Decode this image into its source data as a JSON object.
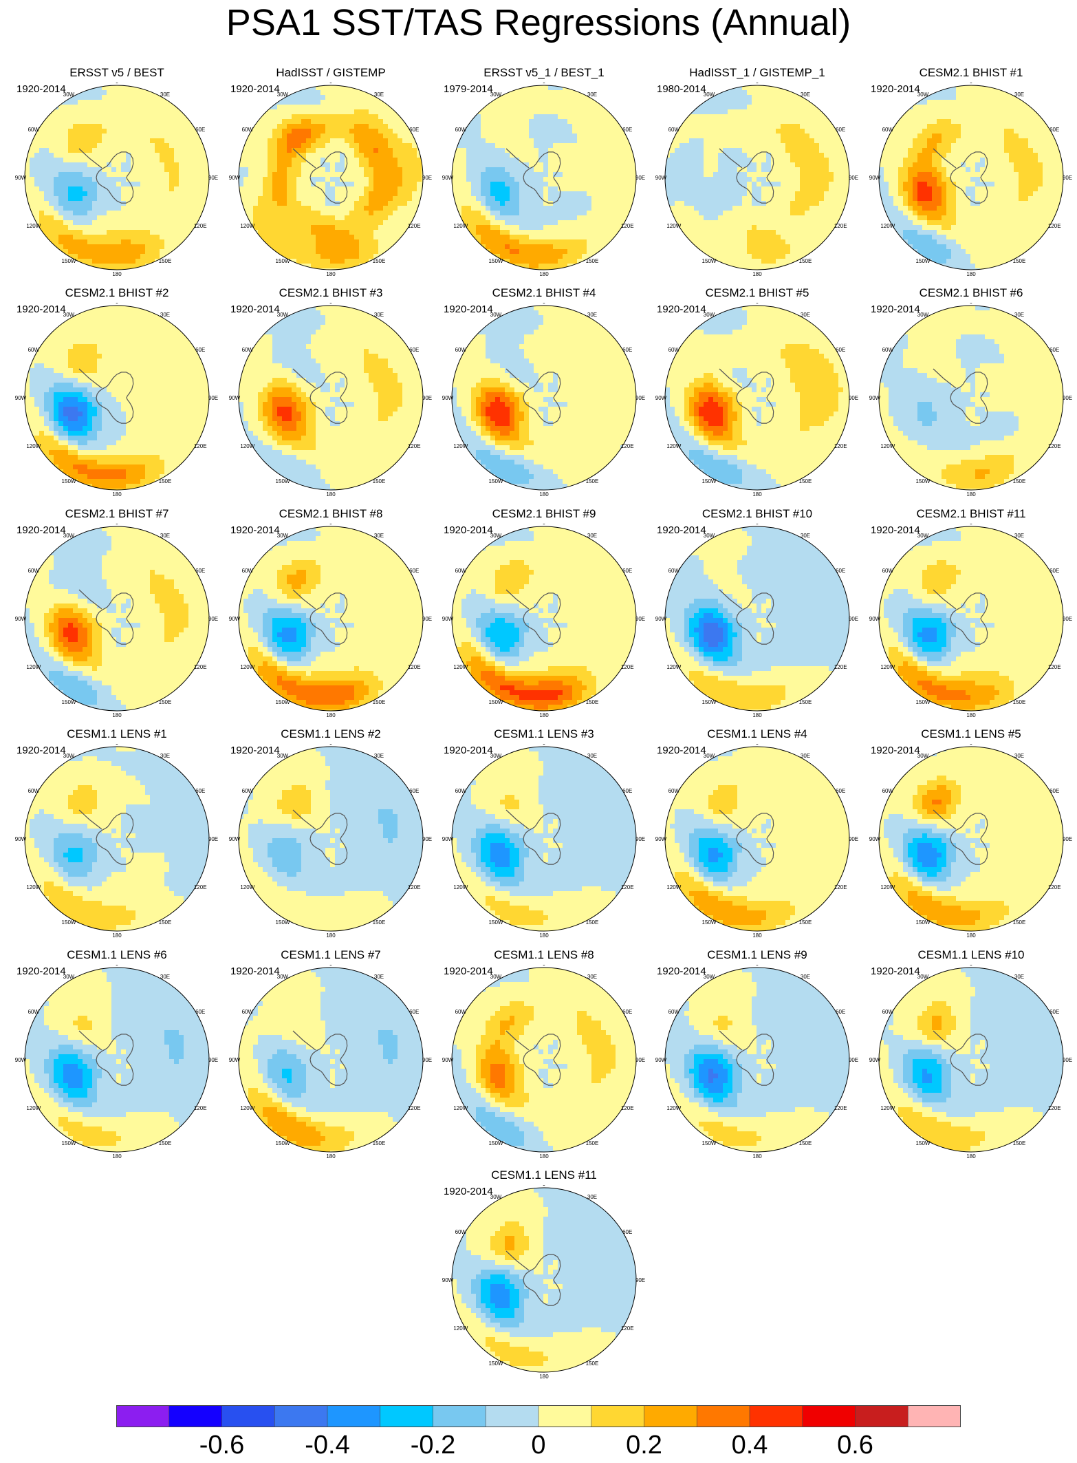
{
  "title": "PSA1 SST/TAS Regressions (Annual)",
  "lon_labels": [
    "0",
    "30E",
    "60E",
    "90E",
    "120E",
    "150E",
    "180",
    "150W",
    "120W",
    "90W",
    "60W",
    "30W"
  ],
  "panels": [
    {
      "title": "ERSST v5 / BEST",
      "period": "1920-2014",
      "pattern": {
        "asl": -0.28,
        "sw": 0.25,
        "nz": 0.18,
        "sa": 0.14,
        "ind": 0.08,
        "ring": 0.05
      }
    },
    {
      "title": "HadISST / GISTEMP",
      "period": "1920-2014",
      "pattern": {
        "asl": 0.05,
        "sw": 0.15,
        "nz": 0.18,
        "sa": 0.2,
        "ind": 0.18,
        "ring": 0.16
      }
    },
    {
      "title": "ERSST v5_1 / BEST_1",
      "period": "1979-2014",
      "pattern": {
        "asl": -0.22,
        "sw": 0.3,
        "nz": 0.15,
        "sa": 0.05,
        "ind": 0.05,
        "ring": -0.02
      }
    },
    {
      "title": "HadISST_1 / GISTEMP_1",
      "period": "1980-2014",
      "pattern": {
        "asl": -0.12,
        "sw": 0.05,
        "nz": 0.1,
        "sa": -0.05,
        "ind": 0.1,
        "ring": 0.08
      }
    },
    {
      "title": "CESM2.1 BHIST #1",
      "period": "1920-2014",
      "pattern": {
        "asl": 0.4,
        "sw": -0.2,
        "nz": 0.12,
        "sa": 0.15,
        "ind": 0.1,
        "ring": 0.05
      }
    },
    {
      "title": "CESM2.1 BHIST #2",
      "period": "1920-2014",
      "pattern": {
        "asl": -0.45,
        "sw": 0.32,
        "nz": 0.2,
        "sa": 0.2,
        "ind": 0.05,
        "ring": 0.0
      }
    },
    {
      "title": "CESM2.1 BHIST #3",
      "period": "1920-2014",
      "pattern": {
        "asl": 0.38,
        "sw": -0.1,
        "nz": 0.08,
        "sa": -0.1,
        "ind": 0.1,
        "ring": 0.05
      }
    },
    {
      "title": "CESM2.1 BHIST #4",
      "period": "1920-2014",
      "pattern": {
        "asl": 0.45,
        "sw": -0.2,
        "nz": 0.05,
        "sa": -0.1,
        "ind": 0.05,
        "ring": 0.05
      }
    },
    {
      "title": "CESM2.1 BHIST #5",
      "period": "1920-2014",
      "pattern": {
        "asl": 0.45,
        "sw": -0.2,
        "nz": 0.05,
        "sa": -0.05,
        "ind": 0.15,
        "ring": 0.05
      }
    },
    {
      "title": "CESM2.1 BHIST #6",
      "period": "1920-2014",
      "pattern": {
        "asl": -0.1,
        "sw": 0.05,
        "nz": 0.2,
        "sa": 0.05,
        "ind": 0.05,
        "ring": -0.02
      }
    },
    {
      "title": "CESM2.1 BHIST #7",
      "period": "1920-2014",
      "pattern": {
        "asl": 0.4,
        "sw": -0.2,
        "nz": 0.1,
        "sa": -0.15,
        "ind": 0.1,
        "ring": 0.05
      }
    },
    {
      "title": "CESM2.1 BHIST #8",
      "period": "1920-2014",
      "pattern": {
        "asl": -0.4,
        "sw": 0.35,
        "nz": 0.25,
        "sa": 0.2,
        "ind": 0.05,
        "ring": 0.05
      }
    },
    {
      "title": "CESM2.1 BHIST #9",
      "period": "1920-2014",
      "pattern": {
        "asl": -0.35,
        "sw": 0.4,
        "nz": 0.3,
        "sa": 0.15,
        "ind": 0.05,
        "ring": 0.05
      }
    },
    {
      "title": "CESM2.1 BHIST #10",
      "period": "1920-2014",
      "pattern": {
        "asl": -0.45,
        "sw": 0.2,
        "nz": 0.1,
        "sa": 0.05,
        "ind": -0.05,
        "ring": -0.02
      }
    },
    {
      "title": "CESM2.1 BHIST #11",
      "period": "1920-2014",
      "pattern": {
        "asl": -0.4,
        "sw": 0.35,
        "nz": 0.15,
        "sa": 0.15,
        "ind": 0.05,
        "ring": 0.05
      }
    },
    {
      "title": "CESM1.1 LENS #1",
      "period": "1920-2014",
      "pattern": {
        "asl": -0.25,
        "sw": 0.2,
        "nz": 0.05,
        "sa": 0.15,
        "ind": -0.05,
        "ring": 0.02
      }
    },
    {
      "title": "CESM1.1 LENS #2",
      "period": "1920-2014",
      "pattern": {
        "asl": -0.15,
        "sw": 0.1,
        "nz": 0.05,
        "sa": 0.2,
        "ind": -0.1,
        "ring": -0.02
      }
    },
    {
      "title": "CESM1.1 LENS #3",
      "period": "1920-2014",
      "pattern": {
        "asl": -0.35,
        "sw": 0.15,
        "nz": 0.05,
        "sa": 0.15,
        "ind": -0.05,
        "ring": -0.02
      }
    },
    {
      "title": "CESM1.1 LENS #4",
      "period": "1920-2014",
      "pattern": {
        "asl": -0.35,
        "sw": 0.3,
        "nz": 0.1,
        "sa": 0.15,
        "ind": 0.05,
        "ring": 0.02
      }
    },
    {
      "title": "CESM1.1 LENS #5",
      "period": "1920-2014",
      "pattern": {
        "asl": -0.4,
        "sw": 0.3,
        "nz": 0.1,
        "sa": 0.3,
        "ind": 0.05,
        "ring": 0.02
      }
    },
    {
      "title": "CESM1.1 LENS #6",
      "period": "1920-2014",
      "pattern": {
        "asl": -0.35,
        "sw": 0.15,
        "nz": 0.05,
        "sa": 0.15,
        "ind": -0.1,
        "ring": -0.02
      }
    },
    {
      "title": "CESM1.1 LENS #7",
      "period": "1920-2014",
      "pattern": {
        "asl": -0.2,
        "sw": 0.3,
        "nz": 0.05,
        "sa": 0.1,
        "ind": -0.1,
        "ring": -0.02
      }
    },
    {
      "title": "CESM1.1 LENS #8",
      "period": "1920-2014",
      "pattern": {
        "asl": 0.3,
        "sw": -0.2,
        "nz": 0.1,
        "sa": 0.15,
        "ind": 0.1,
        "ring": 0.05
      }
    },
    {
      "title": "CESM1.1 LENS #9",
      "period": "1920-2014",
      "pattern": {
        "asl": -0.4,
        "sw": 0.15,
        "nz": 0.05,
        "sa": 0.15,
        "ind": -0.05,
        "ring": -0.02
      }
    },
    {
      "title": "CESM1.1 LENS #10",
      "period": "1920-2014",
      "pattern": {
        "asl": -0.3,
        "sw": 0.2,
        "nz": 0.05,
        "sa": 0.25,
        "ind": -0.05,
        "ring": -0.02
      }
    },
    {
      "title": "CESM1.1 LENS #11",
      "period": "1920-2014",
      "pattern": {
        "asl": -0.35,
        "sw": 0.15,
        "nz": 0.05,
        "sa": 0.25,
        "ind": -0.05,
        "ring": -0.02
      }
    }
  ],
  "chart_data": {
    "type": "heatmap",
    "title": "PSA1 SST/TAS Regressions (Annual)",
    "projection": "south polar stereographic",
    "colorbar": {
      "colors": [
        "#8c1ef0",
        "#1400ff",
        "#2850f0",
        "#3c78f0",
        "#1e96ff",
        "#00c8ff",
        "#78c8f0",
        "#b4dcf0",
        "#fffa9b",
        "#ffd732",
        "#ffaa00",
        "#ff7800",
        "#ff3200",
        "#f00000",
        "#c81e1e",
        "#ffb4b4"
      ],
      "bounds": [
        -0.7,
        -0.6,
        -0.5,
        -0.4,
        -0.3,
        -0.2,
        -0.1,
        0,
        0.1,
        0.2,
        0.3,
        0.4,
        0.5,
        0.6,
        0.7
      ],
      "tick_labels": [
        {
          "value": -0.6,
          "label": "-0.6"
        },
        {
          "value": -0.4,
          "label": "-0.4"
        },
        {
          "value": -0.2,
          "label": "-0.2"
        },
        {
          "value": 0,
          "label": "0"
        },
        {
          "value": 0.2,
          "label": "0.2"
        },
        {
          "value": 0.4,
          "label": "0.4"
        },
        {
          "value": 0.6,
          "label": "0.6"
        }
      ]
    }
  }
}
